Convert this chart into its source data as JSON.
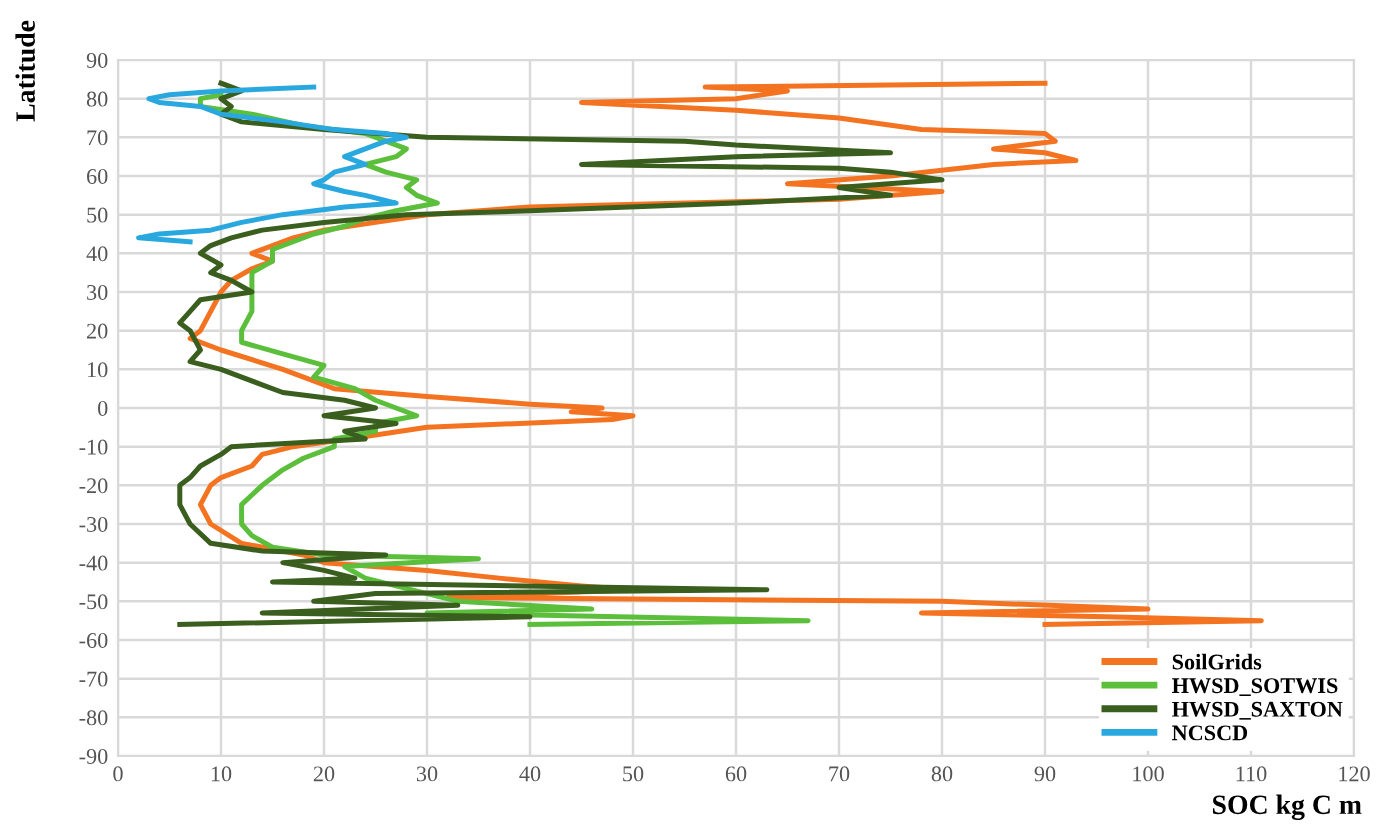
{
  "chart_data": {
    "type": "line",
    "xlabel": "SOC kg C m",
    "ylabel": "Latitude",
    "xlim": [
      0,
      120
    ],
    "xticks": [
      0,
      10,
      20,
      30,
      40,
      50,
      60,
      70,
      80,
      90,
      100,
      110,
      120
    ],
    "ylim": [
      -90,
      90
    ],
    "yticks": [
      -90,
      -80,
      -70,
      -60,
      -50,
      -40,
      -30,
      -20,
      -10,
      0,
      10,
      20,
      30,
      40,
      50,
      60,
      70,
      80,
      90
    ],
    "grid": true,
    "legend": "bottom right",
    "line_style": "solid",
    "marker": "none",
    "series": [
      {
        "name": "SoilGrids",
        "color": "#f47321",
        "x": [
          90,
          57,
          65,
          60,
          45,
          60,
          70,
          78,
          90,
          91,
          85,
          90,
          93,
          85,
          75,
          65,
          80,
          70,
          40,
          30,
          25,
          20,
          17,
          15,
          13,
          15,
          13,
          11,
          10,
          9,
          8,
          7,
          10,
          16,
          21,
          30,
          40,
          47,
          44,
          50,
          48,
          30,
          25,
          17,
          14,
          13,
          10,
          9,
          8,
          9,
          12,
          18,
          20,
          30,
          37,
          45,
          50,
          32,
          80,
          100,
          78,
          96,
          111,
          90
        ],
        "values": [
          84,
          83,
          82,
          80,
          79,
          77,
          75,
          72,
          71,
          69,
          67,
          66,
          64,
          63,
          60,
          58,
          56,
          54,
          52,
          50,
          48,
          46,
          44,
          42,
          40,
          38,
          36,
          33,
          30,
          25,
          20,
          18,
          15,
          10,
          5,
          3,
          1,
          0,
          -1,
          -2,
          -3,
          -5,
          -7,
          -10,
          -12,
          -15,
          -18,
          -20,
          -25,
          -30,
          -35,
          -38,
          -40,
          -42,
          -44,
          -46,
          -47,
          -49,
          -50,
          -52,
          -53,
          -54,
          -55,
          -56
        ]
      },
      {
        "name": "HWSD_SOTWIS",
        "color": "#5cbf3c",
        "x": [
          10,
          8,
          8,
          13,
          18,
          24,
          26,
          28,
          27,
          24,
          26,
          29,
          28,
          29,
          31,
          27,
          24,
          22,
          19,
          17,
          15,
          15,
          13,
          13,
          13,
          12,
          12,
          16,
          20,
          19,
          23,
          25,
          27,
          29,
          25,
          25,
          21,
          21,
          18,
          16,
          14,
          12,
          12,
          13,
          15,
          20,
          35,
          22,
          24,
          27,
          30,
          33,
          46,
          30,
          67,
          40
        ],
        "values": [
          81,
          80,
          78,
          76,
          73,
          71,
          69,
          67,
          65,
          63,
          61,
          59,
          57,
          55,
          53,
          51,
          49,
          47,
          45,
          43,
          41,
          38,
          35,
          30,
          25,
          20,
          17,
          14,
          11,
          8,
          5,
          2,
          0,
          -2,
          -4,
          -6,
          -8,
          -10,
          -13,
          -16,
          -20,
          -25,
          -30,
          -33,
          -36,
          -38,
          -39,
          -41,
          -44,
          -46,
          -48,
          -50,
          -52,
          -53,
          -55,
          -56
        ]
      },
      {
        "name": "HWSD_SAXTON",
        "color": "#3a5e1e",
        "x": [
          10,
          12,
          10,
          11,
          10,
          12,
          20,
          30,
          55,
          60,
          75,
          60,
          45,
          70,
          75,
          80,
          70,
          75,
          60,
          40,
          28,
          20,
          14,
          11,
          9,
          8,
          10,
          9,
          11,
          13,
          8,
          7,
          6,
          7,
          8,
          7,
          10,
          14,
          16,
          22,
          25,
          20,
          27,
          22,
          24,
          11,
          10,
          8,
          7,
          6,
          6,
          7,
          9,
          14,
          26,
          16,
          20,
          23,
          15,
          63,
          25,
          19,
          33,
          14,
          40,
          6
        ],
        "values": [
          84,
          82,
          80,
          78,
          76,
          74,
          72,
          70,
          69,
          68,
          66,
          65,
          63,
          62,
          61,
          59,
          57,
          55,
          53,
          51,
          50,
          48,
          46,
          44,
          42,
          40,
          37,
          35,
          33,
          30,
          28,
          25,
          22,
          20,
          15,
          12,
          10,
          6,
          4,
          2,
          0,
          -2,
          -4,
          -6,
          -8,
          -10,
          -12,
          -15,
          -18,
          -20,
          -25,
          -30,
          -35,
          -37,
          -38,
          -40,
          -42,
          -44,
          -45,
          -47,
          -48,
          -50,
          -51,
          -53,
          -54,
          -56
        ]
      },
      {
        "name": "NCSCD",
        "color": "#29a8e0",
        "x": [
          19,
          10,
          5,
          3,
          4,
          8,
          10,
          16,
          21,
          26,
          28,
          26,
          24,
          22,
          24,
          21,
          20,
          19,
          22,
          24,
          27,
          22,
          16,
          12,
          9,
          4,
          2,
          7
        ],
        "values": [
          83,
          82,
          81,
          80,
          79,
          78,
          76,
          74,
          72,
          71,
          70,
          69,
          67,
          65,
          63,
          61,
          59,
          58,
          56,
          55,
          53,
          52,
          50,
          48,
          46,
          45,
          44,
          43
        ]
      }
    ]
  }
}
